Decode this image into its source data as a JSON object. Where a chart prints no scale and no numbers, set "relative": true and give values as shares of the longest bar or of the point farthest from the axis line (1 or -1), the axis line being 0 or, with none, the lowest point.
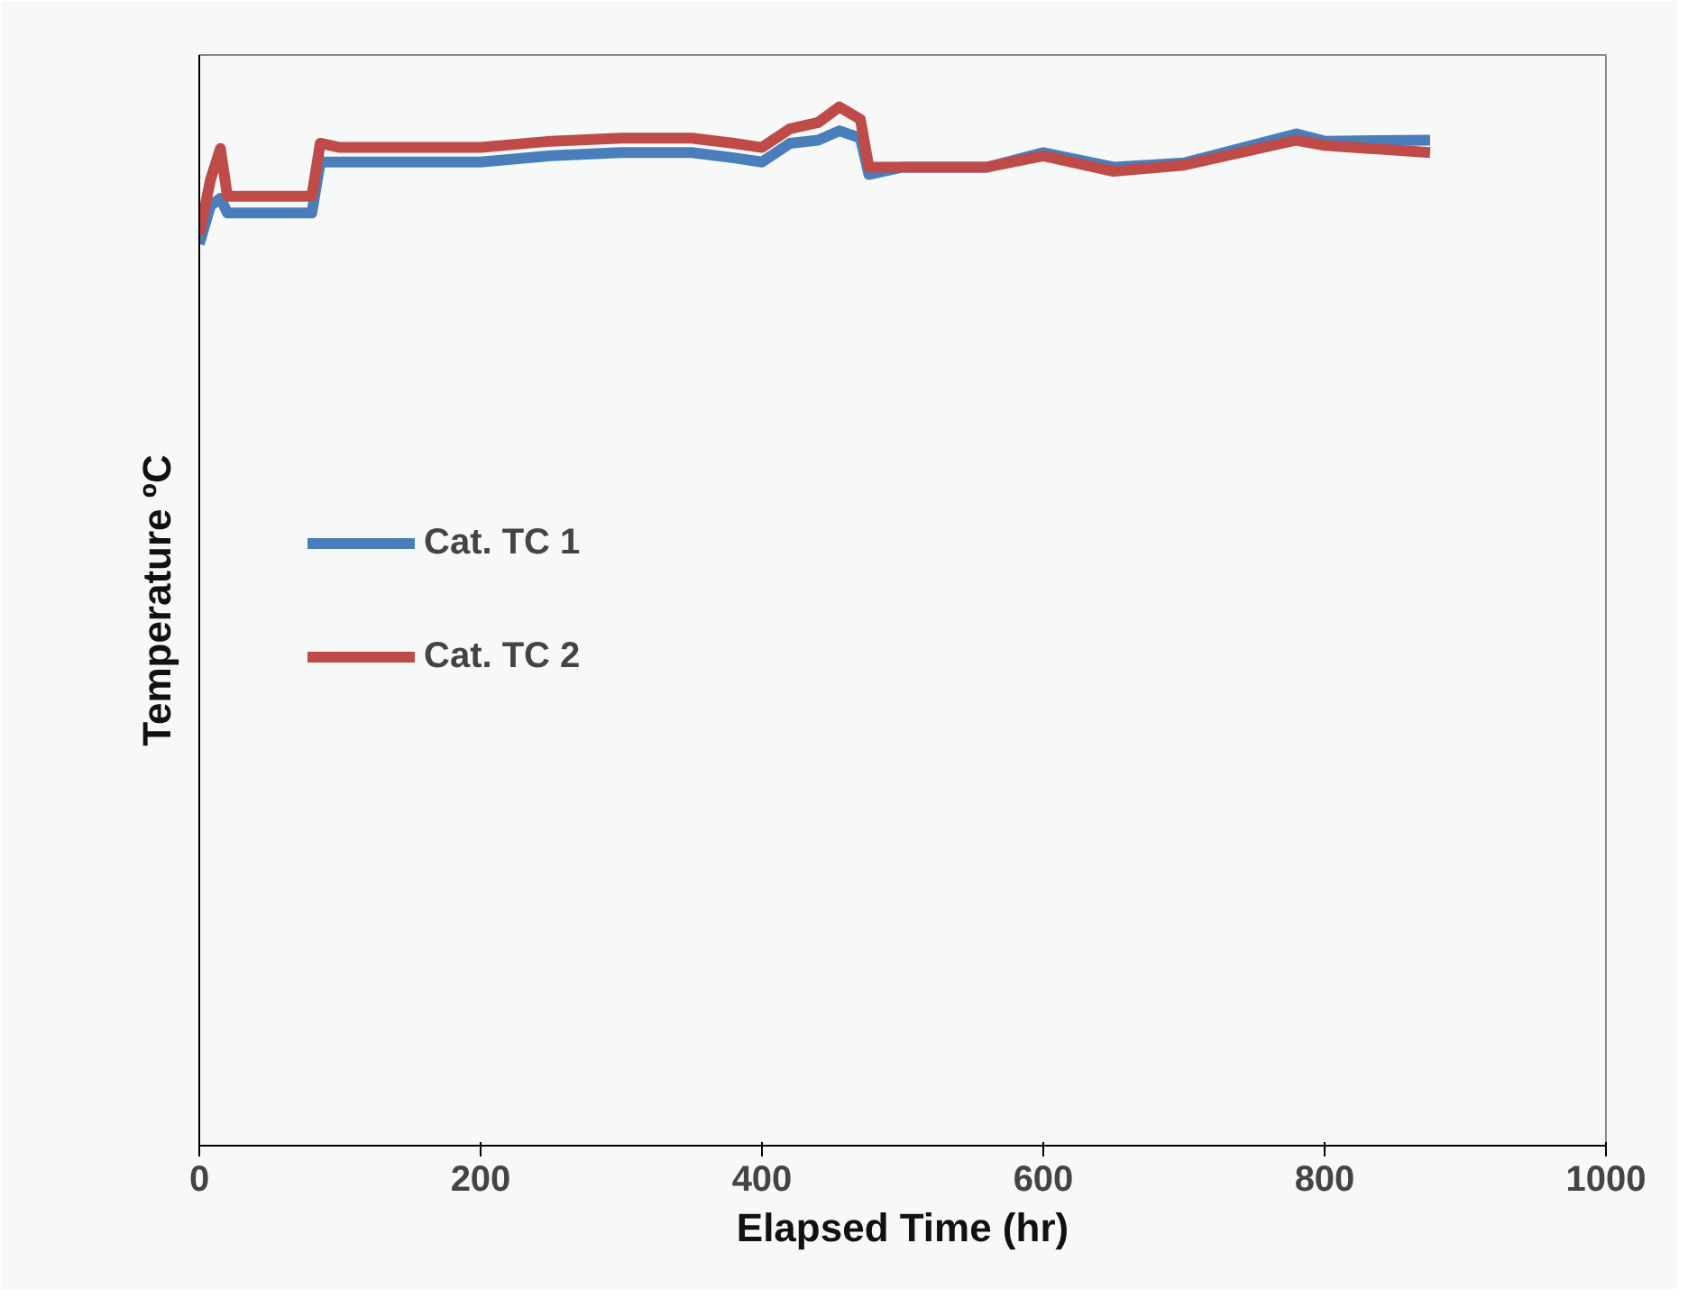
{
  "chart_data": {
    "type": "line",
    "xlabel": "Elapsed Time (hr)",
    "ylabel": "Temperature ºC",
    "relative": true,
    "xlim": [
      0,
      1000
    ],
    "xticks": [
      0,
      200,
      400,
      600,
      800,
      1000
    ],
    "x": [
      0,
      8,
      15,
      20,
      50,
      80,
      86,
      100,
      150,
      200,
      250,
      300,
      350,
      380,
      400,
      420,
      440,
      455,
      470,
      476,
      500,
      560,
      600,
      650,
      700,
      780,
      800,
      875
    ],
    "series": [
      {
        "name": "Cat. TC 1",
        "color": "#4a7ebb",
        "values": [
          0.868,
          0.905,
          0.912,
          0.898,
          0.898,
          0.898,
          0.947,
          0.947,
          0.947,
          0.947,
          0.953,
          0.956,
          0.956,
          0.951,
          0.947,
          0.965,
          0.968,
          0.977,
          0.97,
          0.935,
          0.942,
          0.942,
          0.956,
          0.942,
          0.946,
          0.974,
          0.967,
          0.968
        ]
      },
      {
        "name": "Cat. TC 2",
        "color": "#be4b48",
        "values": [
          0.877,
          0.93,
          0.96,
          0.914,
          0.914,
          0.914,
          0.965,
          0.961,
          0.961,
          0.961,
          0.967,
          0.97,
          0.97,
          0.965,
          0.961,
          0.979,
          0.985,
          1.0,
          0.988,
          0.942,
          0.942,
          0.942,
          0.953,
          0.938,
          0.944,
          0.968,
          0.963,
          0.956
        ]
      }
    ],
    "legend": "left",
    "grid": false
  }
}
